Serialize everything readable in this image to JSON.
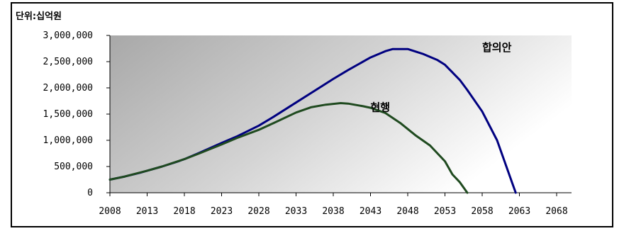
{
  "chart_data": {
    "type": "line",
    "unit_label": "단위:십억원",
    "title": "",
    "xlabel": "",
    "ylabel": "",
    "x_ticks": [
      "2008",
      "2013",
      "2018",
      "2023",
      "2028",
      "2033",
      "2038",
      "2043",
      "2048",
      "2053",
      "2058",
      "2063",
      "2068"
    ],
    "y_ticks": [
      "0",
      "500,000",
      "1,000,000",
      "1,500,000",
      "2,000,000",
      "2,500,000",
      "3,000,000"
    ],
    "xlim": [
      2008,
      2070
    ],
    "ylim": [
      0,
      3000000
    ],
    "grid": false,
    "background": "gradient gray-to-white",
    "series": [
      {
        "name": "합의안",
        "color": "#000080",
        "points": [
          [
            2008,
            250000
          ],
          [
            2010,
            310000
          ],
          [
            2012,
            380000
          ],
          [
            2013,
            420000
          ],
          [
            2015,
            500000
          ],
          [
            2017,
            590000
          ],
          [
            2018,
            640000
          ],
          [
            2020,
            760000
          ],
          [
            2023,
            950000
          ],
          [
            2025,
            1070000
          ],
          [
            2028,
            1280000
          ],
          [
            2030,
            1450000
          ],
          [
            2033,
            1720000
          ],
          [
            2035,
            1900000
          ],
          [
            2038,
            2170000
          ],
          [
            2040,
            2340000
          ],
          [
            2043,
            2580000
          ],
          [
            2045,
            2700000
          ],
          [
            2046,
            2740000
          ],
          [
            2048,
            2740000
          ],
          [
            2050,
            2650000
          ],
          [
            2052,
            2530000
          ],
          [
            2053,
            2440000
          ],
          [
            2055,
            2150000
          ],
          [
            2056,
            1960000
          ],
          [
            2058,
            1550000
          ],
          [
            2060,
            1000000
          ],
          [
            2061,
            600000
          ],
          [
            2062,
            200000
          ],
          [
            2062.5,
            0
          ]
        ]
      },
      {
        "name": "현행",
        "color": "#1f4a1f",
        "points": [
          [
            2008,
            250000
          ],
          [
            2010,
            310000
          ],
          [
            2013,
            420000
          ],
          [
            2015,
            500000
          ],
          [
            2018,
            640000
          ],
          [
            2020,
            750000
          ],
          [
            2023,
            920000
          ],
          [
            2025,
            1040000
          ],
          [
            2028,
            1200000
          ],
          [
            2030,
            1330000
          ],
          [
            2033,
            1530000
          ],
          [
            2035,
            1630000
          ],
          [
            2037,
            1680000
          ],
          [
            2039,
            1710000
          ],
          [
            2040,
            1700000
          ],
          [
            2042,
            1650000
          ],
          [
            2043,
            1620000
          ],
          [
            2045,
            1520000
          ],
          [
            2047,
            1330000
          ],
          [
            2049,
            1100000
          ],
          [
            2051,
            900000
          ],
          [
            2053,
            600000
          ],
          [
            2054,
            350000
          ],
          [
            2055,
            200000
          ],
          [
            2056,
            0
          ]
        ]
      }
    ],
    "annotations": [
      {
        "text": "합의안",
        "x": 2058,
        "y": 2700000
      },
      {
        "text": "현행",
        "x": 2043,
        "y": 1560000
      }
    ]
  }
}
